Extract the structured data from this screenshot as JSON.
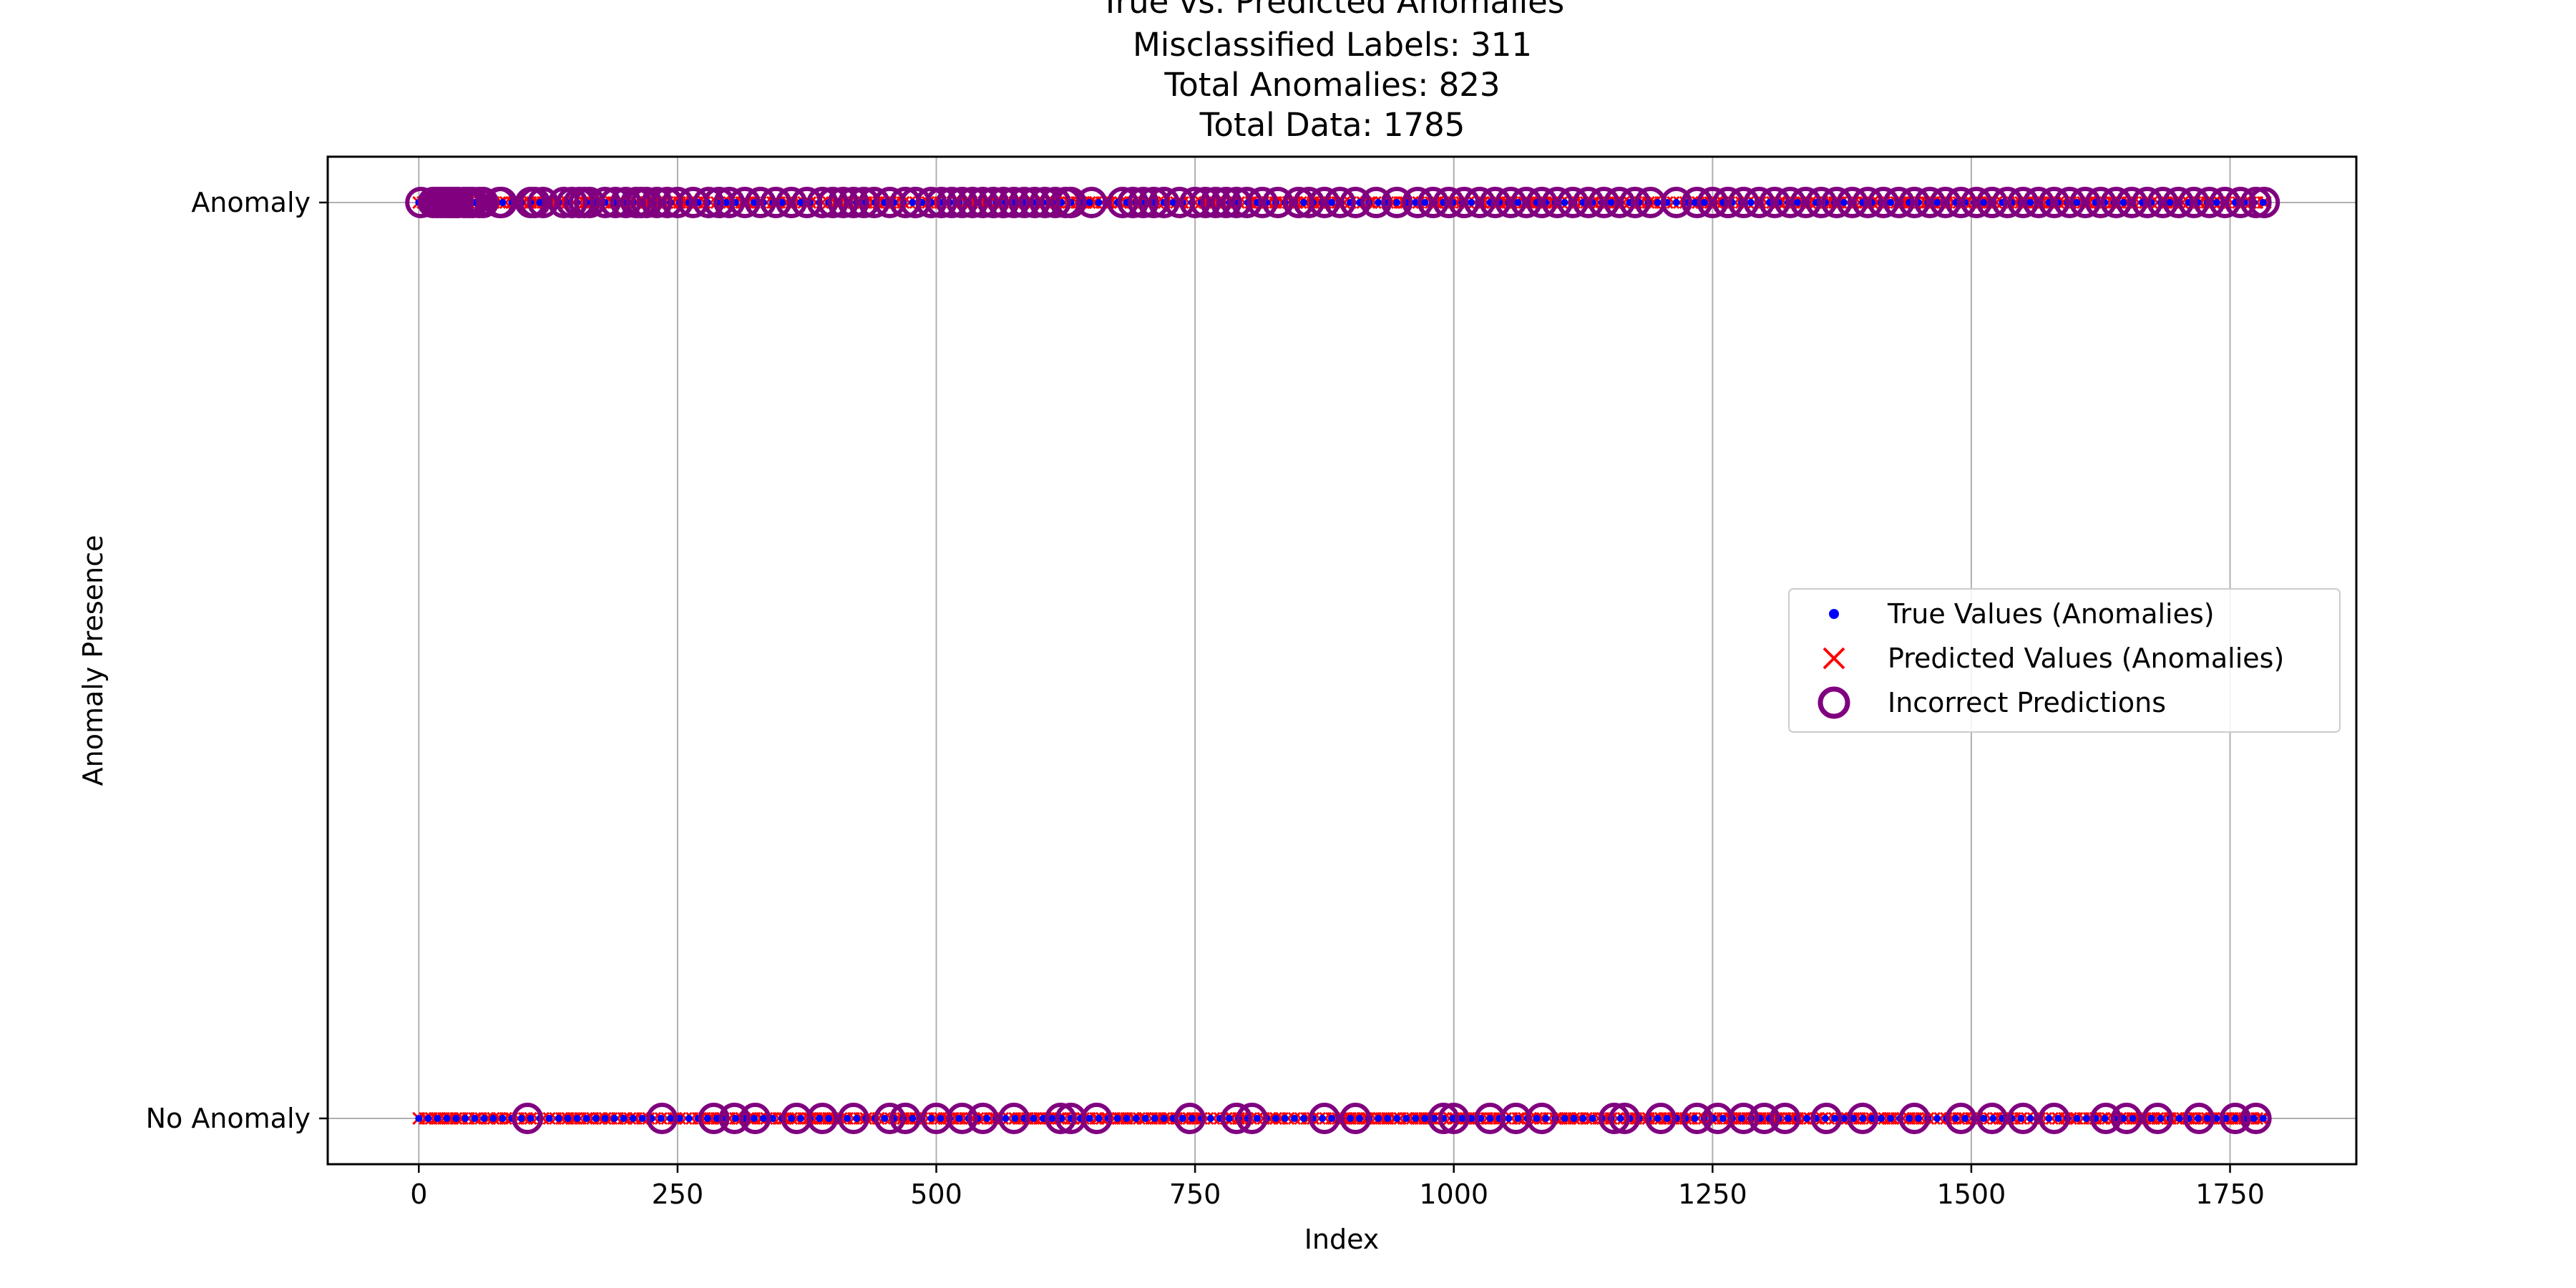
{
  "chart_data": {
    "type": "scatter",
    "title_lines": [
      "True vs. Predicted Anomalies",
      "Misclassified Labels: 311",
      "Total Anomalies: 823",
      "Total Data: 1785"
    ],
    "xlabel": "Index",
    "ylabel": "Anomaly Presence",
    "xlim": [
      -88,
      1872
    ],
    "ylim": [
      -0.05,
      1.05
    ],
    "x_ticks": [
      0,
      250,
      500,
      750,
      1000,
      1250,
      1500,
      1750
    ],
    "y_ticks": [
      {
        "value": 0,
        "label": "No Anomaly"
      },
      {
        "value": 1,
        "label": "Anomaly"
      }
    ],
    "grid": true,
    "legend_position": "center-right",
    "n_points": 1785,
    "series": [
      {
        "name": "True Values (Anomalies)",
        "marker": "dot",
        "color": "#0000ff",
        "values": "0 or 1 per index 0–1784 (dense bands at y=0 and y=1)"
      },
      {
        "name": "Predicted Values (Anomalies)",
        "marker": "x",
        "color": "#ff0000",
        "values": "0 or 1 per index 0–1784 (dense bands at y=0 and y=1)"
      },
      {
        "name": "Incorrect Predictions",
        "marker": "open-circle",
        "color": "#800080",
        "anomaly_row_x": [
          2,
          14,
          18,
          22,
          26,
          30,
          34,
          38,
          44,
          48,
          52,
          58,
          62,
          78,
          80,
          108,
          112,
          120,
          140,
          148,
          155,
          160,
          165,
          180,
          190,
          200,
          210,
          215,
          220,
          230,
          240,
          250,
          265,
          280,
          290,
          300,
          315,
          330,
          345,
          360,
          375,
          390,
          400,
          410,
          420,
          430,
          440,
          455,
          470,
          480,
          495,
          505,
          515,
          525,
          535,
          545,
          555,
          565,
          575,
          585,
          595,
          605,
          615,
          625,
          630,
          650,
          680,
          690,
          700,
          710,
          720,
          735,
          750,
          760,
          770,
          780,
          790,
          800,
          815,
          830,
          850,
          860,
          875,
          890,
          905,
          925,
          945,
          965,
          980,
          995,
          1010,
          1025,
          1040,
          1055,
          1070,
          1085,
          1100,
          1115,
          1130,
          1145,
          1160,
          1175,
          1190,
          1215,
          1235,
          1250,
          1265,
          1280,
          1295,
          1310,
          1325,
          1340,
          1355,
          1370,
          1385,
          1400,
          1415,
          1430,
          1445,
          1460,
          1475,
          1490,
          1505,
          1520,
          1535,
          1550,
          1565,
          1580,
          1595,
          1610,
          1625,
          1640,
          1655,
          1670,
          1685,
          1700,
          1715,
          1730,
          1745,
          1760,
          1775,
          1783
        ],
        "no_anomaly_row_x": [
          105,
          235,
          285,
          305,
          325,
          365,
          390,
          420,
          455,
          470,
          500,
          525,
          545,
          575,
          620,
          630,
          655,
          745,
          790,
          805,
          875,
          905,
          990,
          1000,
          1035,
          1060,
          1085,
          1155,
          1165,
          1200,
          1235,
          1255,
          1280,
          1300,
          1320,
          1360,
          1395,
          1445,
          1490,
          1520,
          1550,
          1580,
          1630,
          1650,
          1680,
          1720,
          1755,
          1775
        ]
      }
    ]
  }
}
